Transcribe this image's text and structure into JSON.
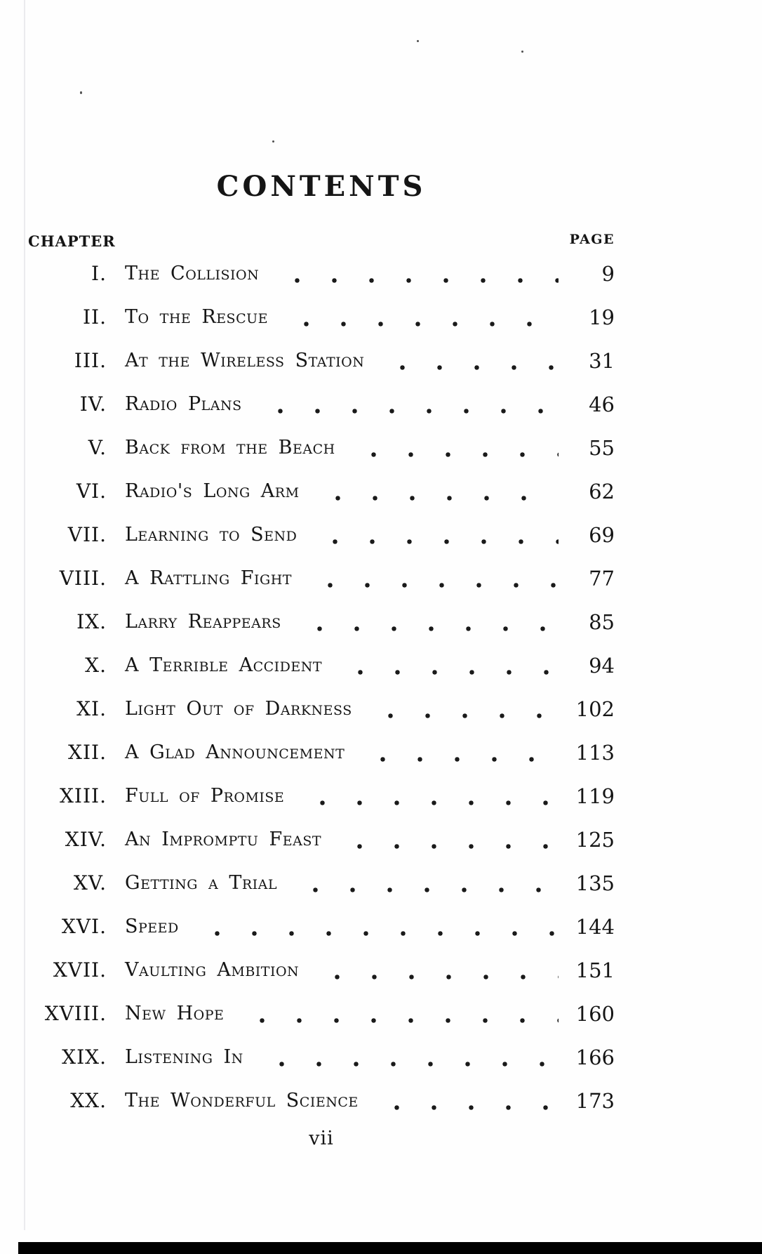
{
  "document": {
    "title": "CONTENTS",
    "chapter_column_header": "CHAPTER",
    "page_column_header": "PAGE",
    "footer_folio": "vii",
    "ink_color": "#151515",
    "entries": [
      {
        "numeral": "I.",
        "title": "The Collision",
        "page": "9"
      },
      {
        "numeral": "II.",
        "title": "To the Rescue",
        "page": "19"
      },
      {
        "numeral": "III.",
        "title": "At the Wireless Station",
        "page": "31"
      },
      {
        "numeral": "IV.",
        "title": "Radio Plans",
        "page": "46"
      },
      {
        "numeral": "V.",
        "title": "Back from the Beach",
        "page": "55"
      },
      {
        "numeral": "VI.",
        "title": "Radio's Long Arm",
        "page": "62"
      },
      {
        "numeral": "VII.",
        "title": "Learning to Send",
        "page": "69"
      },
      {
        "numeral": "VIII.",
        "title": "A Rattling Fight",
        "page": "77"
      },
      {
        "numeral": "IX.",
        "title": "Larry Reappears",
        "page": "85"
      },
      {
        "numeral": "X.",
        "title": "A Terrible Accident",
        "page": "94"
      },
      {
        "numeral": "XI.",
        "title": "Light Out of Darkness",
        "page": "102"
      },
      {
        "numeral": "XII.",
        "title": "A Glad Announcement",
        "page": "113"
      },
      {
        "numeral": "XIII.",
        "title": "Full of Promise",
        "page": "119"
      },
      {
        "numeral": "XIV.",
        "title": "An Impromptu Feast",
        "page": "125"
      },
      {
        "numeral": "XV.",
        "title": "Getting a Trial",
        "page": "135"
      },
      {
        "numeral": "XVI.",
        "title": "Speed",
        "page": "144"
      },
      {
        "numeral": "XVII.",
        "title": "Vaulting Ambition",
        "page": "151"
      },
      {
        "numeral": "XVIII.",
        "title": "New Hope",
        "page": "160"
      },
      {
        "numeral": "XIX.",
        "title": "Listening In",
        "page": "166"
      },
      {
        "numeral": "XX.",
        "title": "The Wonderful Science",
        "page": "173"
      }
    ]
  }
}
